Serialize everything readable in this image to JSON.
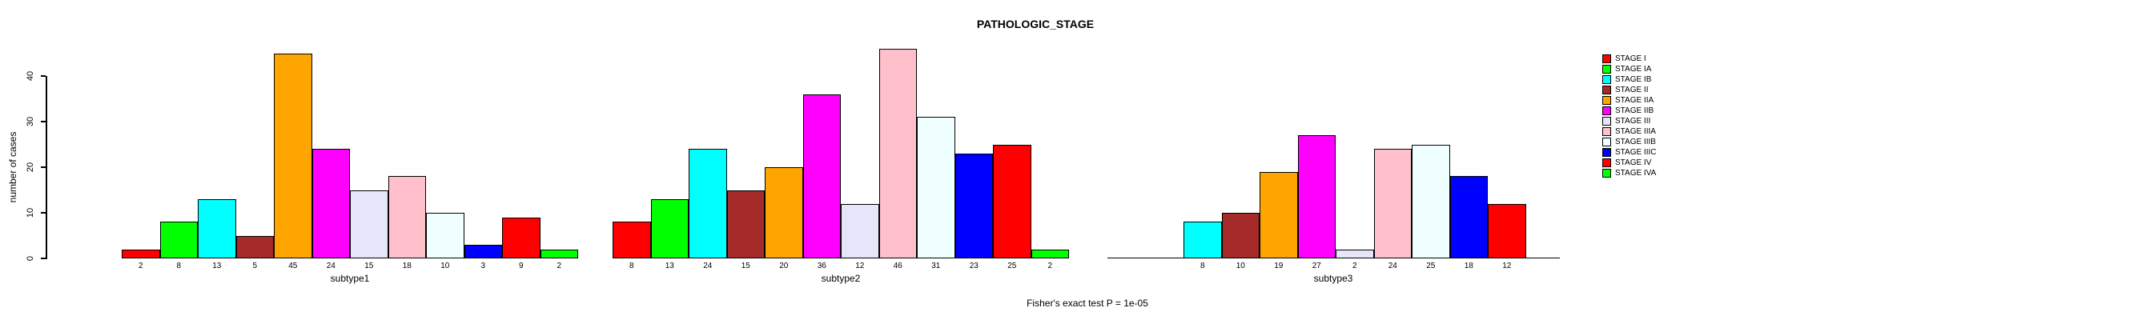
{
  "title": "PATHOLOGIC_STAGE",
  "footnote": "Fisher's exact test P = 1e-05",
  "legend": {
    "entries": [
      {
        "label": "STAGE I",
        "color": "#FF0000"
      },
      {
        "label": "STAGE IA",
        "color": "#00FF00"
      },
      {
        "label": "STAGE IB",
        "color": "#00FFFF"
      },
      {
        "label": "STAGE II",
        "color": "#A52A2A"
      },
      {
        "label": "STAGE IIA",
        "color": "#FFA500"
      },
      {
        "label": "STAGE IIB",
        "color": "#FF00FF"
      },
      {
        "label": "STAGE III",
        "color": "#E6E6FA"
      },
      {
        "label": "STAGE IIIA",
        "color": "#FFC0CB"
      },
      {
        "label": "STAGE IIIB",
        "color": "#F0FFFF"
      },
      {
        "label": "STAGE IIIC",
        "color": "#0000FF"
      },
      {
        "label": "STAGE IV",
        "color": "#FF0000"
      },
      {
        "label": "STAGE IVA",
        "color": "#00FF00"
      }
    ]
  },
  "chart_data": {
    "type": "bar",
    "title": "PATHOLOGIC_STAGE",
    "ylabel": "number of cases",
    "xlabel": "",
    "ylim": [
      0,
      46
    ],
    "yticks": [
      0,
      10,
      20,
      30,
      40
    ],
    "grid": false,
    "legend_position": "right",
    "footnote": "Fisher's exact test P = 1e-05",
    "subplots": [
      {
        "xlabel": "subtype1",
        "categories": [
          "STAGE I",
          "STAGE IA",
          "STAGE IB",
          "STAGE II",
          "STAGE IIA",
          "STAGE IIB",
          "STAGE III",
          "STAGE IIIA",
          "STAGE IIIB",
          "STAGE IIIC",
          "STAGE IV",
          "STAGE IVA"
        ],
        "values": [
          2,
          8,
          13,
          5,
          45,
          24,
          15,
          18,
          10,
          3,
          9,
          2
        ]
      },
      {
        "xlabel": "subtype2",
        "categories": [
          "STAGE I",
          "STAGE IA",
          "STAGE IB",
          "STAGE II",
          "STAGE IIA",
          "STAGE IIB",
          "STAGE III",
          "STAGE IIIA",
          "STAGE IIIB",
          "STAGE IIIC",
          "STAGE IV",
          "STAGE IVA"
        ],
        "values": [
          8,
          13,
          24,
          15,
          20,
          36,
          12,
          46,
          31,
          23,
          25,
          2
        ]
      },
      {
        "xlabel": "subtype3",
        "categories": [
          "STAGE IB",
          "STAGE II",
          "STAGE IIA",
          "STAGE IIB",
          "STAGE III",
          "STAGE IIIA",
          "STAGE IIIB",
          "STAGE IIIC",
          "STAGE IV"
        ],
        "values": [
          8,
          10,
          19,
          27,
          2,
          24,
          25,
          18,
          12
        ]
      }
    ]
  }
}
